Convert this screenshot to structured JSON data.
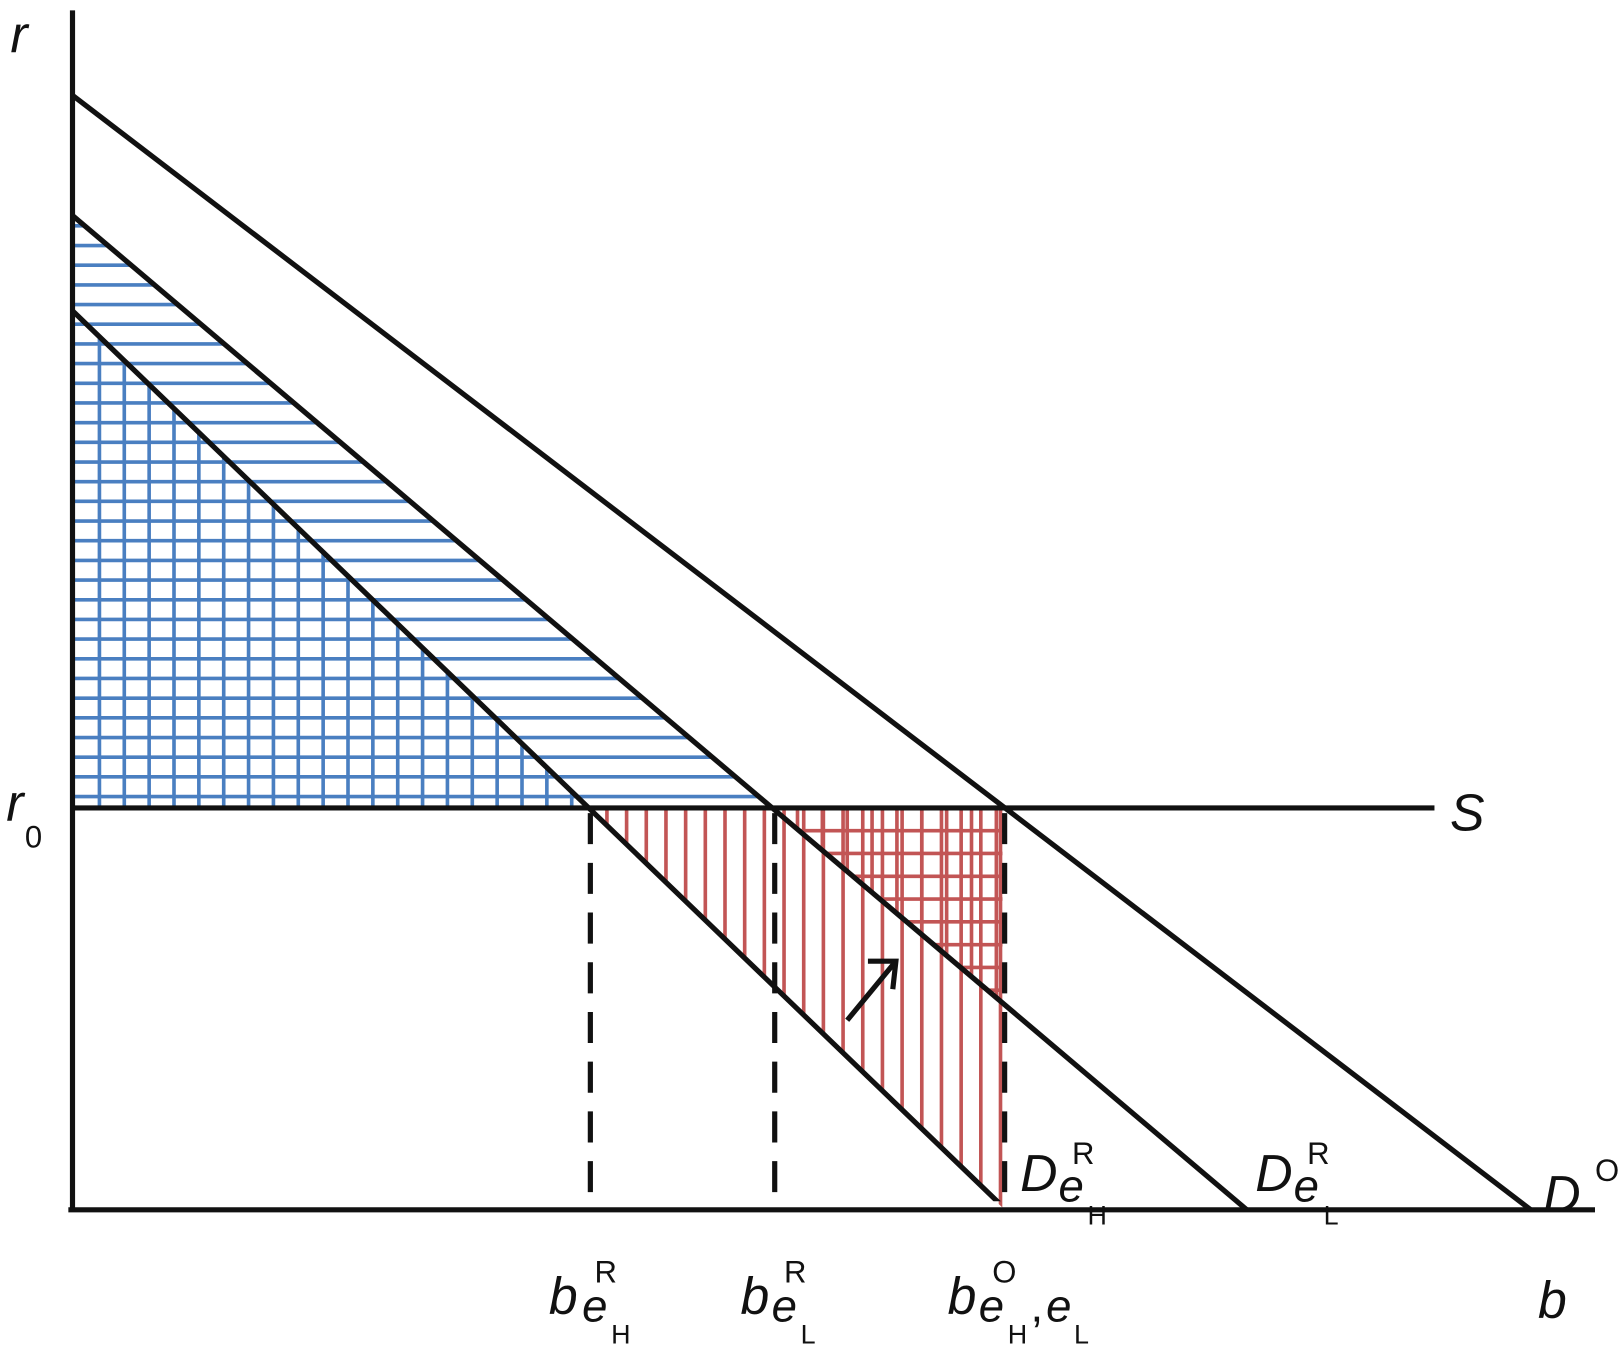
{
  "axes": {
    "y_label": "r",
    "x_label": "b"
  },
  "r0": {
    "main": "r",
    "sub": "0"
  },
  "supply_label": "S",
  "curves": [
    {
      "main": "D",
      "sup": "R",
      "sub": "e",
      "subsub": "H"
    },
    {
      "main": "D",
      "sup": "R",
      "sub": "e",
      "subsub": "L"
    },
    {
      "main": "D",
      "sup": "O"
    }
  ],
  "ticks": [
    {
      "main": "b",
      "sup": "R",
      "sub": "e",
      "subsub": "H"
    },
    {
      "main": "b",
      "sup": "R",
      "sub": "e",
      "subsub": "L"
    },
    {
      "main": "b",
      "sup": "O",
      "sub": "e",
      "subsub": "H",
      "sep": ",",
      "sub2": "e",
      "subsub2": "L"
    }
  ]
}
